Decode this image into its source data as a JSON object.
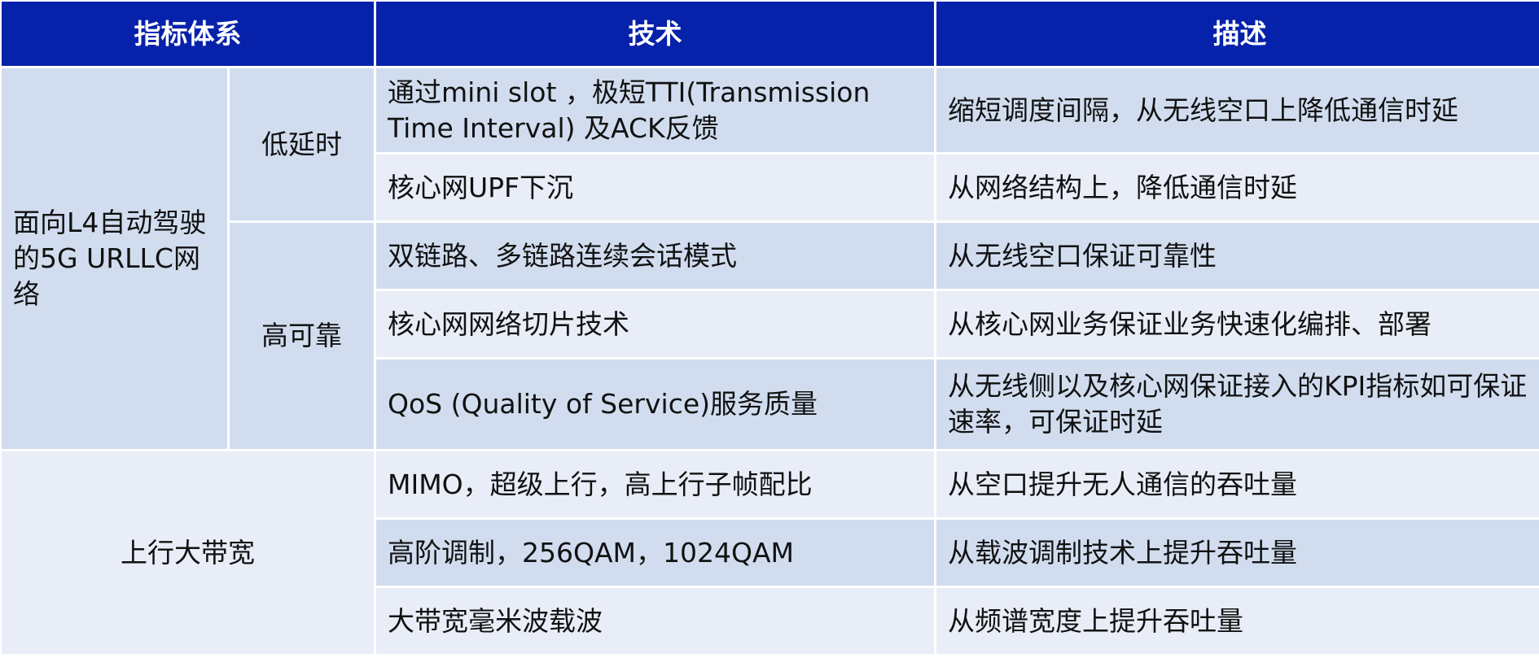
{
  "header": {
    "col1": "指标体系",
    "col2": "技术",
    "col3": "描述"
  },
  "groups": {
    "urllc": "面向L4自动驾驶的5G URLLC网络",
    "low_latency": "低延时",
    "high_reliability": "高可靠",
    "uplink": "上行大带宽"
  },
  "rows": [
    {
      "tech": "通过mini slot ，极短TTI(Transmission Time Interval) 及ACK反馈",
      "desc": "缩短调度间隔，从无线空口上降低通信时延"
    },
    {
      "tech": "核心网UPF下沉",
      "desc": "从网络结构上，降低通信时延"
    },
    {
      "tech": "双链路、多链路连续会话模式",
      "desc": "从无线空口保证可靠性"
    },
    {
      "tech": "核心网网络切片技术",
      "desc": "从核心网业务保证业务快速化编排、部署"
    },
    {
      "tech": "QoS (Quality of Service)服务质量",
      "desc": "从无线侧以及核心网保证接入的KPI指标如可保证速率，可保证时延"
    },
    {
      "tech": "MIMO，超级上行，高上行子帧配比",
      "desc": "从空口提升无人通信的吞吐量"
    },
    {
      "tech": "高阶调制，256QAM，1024QAM",
      "desc": "从载波调制技术上提升吞吐量"
    },
    {
      "tech": "大带宽毫米波载波",
      "desc": "从频谱宽度上提升吞吐量"
    }
  ]
}
